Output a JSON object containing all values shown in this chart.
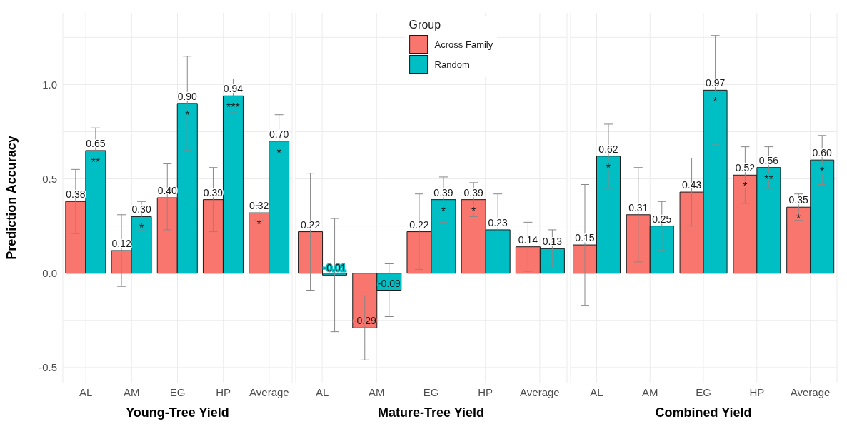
{
  "chart_data": [
    {
      "type": "bar",
      "xlabel": "Young-Tree Yield",
      "ylabel": "Prediction Accuracy",
      "categories": [
        "AL",
        "AM",
        "EG",
        "HP",
        "Average"
      ],
      "ylim": [
        -0.58,
        1.38
      ],
      "yticks": [
        {
          "value": -0.5,
          "label": "-0.5"
        },
        {
          "value": -0.25,
          "label": null
        },
        {
          "value": 0,
          "label": "0.0"
        },
        {
          "value": 0.25,
          "label": null
        },
        {
          "value": 0.5,
          "label": "0.5"
        },
        {
          "value": 0.75,
          "label": null
        },
        {
          "value": 1,
          "label": "1.0"
        },
        {
          "value": 1.25,
          "label": null
        }
      ],
      "grid": true,
      "series": [
        {
          "color": "#f8766d",
          "values": [
            0.38,
            0.12,
            0.4,
            0.39,
            0.32
          ],
          "value_labels": [
            "0.38",
            "0.12",
            "0.40",
            "0.39",
            "0.32"
          ],
          "errors": [
            [
              0.21,
              0.55
            ],
            [
              -0.07,
              0.31
            ],
            [
              0.23,
              0.58
            ],
            [
              0.22,
              0.56
            ],
            [
              0.28,
              0.36
            ]
          ]
        },
        {
          "color": "#00bfc4",
          "values": [
            0.65,
            0.3,
            0.9,
            0.94,
            0.7
          ],
          "value_labels": [
            "0.65",
            "0.30",
            "0.90",
            "0.94",
            "0.70"
          ],
          "errors": [
            [
              0.53,
              0.77
            ],
            [
              0.23,
              0.38
            ],
            [
              0.65,
              1.15
            ],
            [
              0.85,
              1.03
            ],
            [
              0.57,
              0.84
            ]
          ]
        }
      ],
      "annotations": [
        {
          "text": "**",
          "x": "AL",
          "y": 0.65
        },
        {
          "text": "*",
          "x": "AM",
          "y": 0.3
        },
        {
          "text": "*",
          "x": "EG",
          "y": 0.9
        },
        {
          "text": "***",
          "x": "HP",
          "y": 0.94
        },
        {
          "text": "*",
          "x": "Average",
          "y": 0.32
        },
        {
          "text": "*",
          "x": "Average",
          "y": 0.7
        }
      ]
    },
    {
      "type": "bar",
      "xlabel": "Mature-Tree Yield",
      "categories": [
        "AL",
        "AM",
        "EG",
        "HP",
        "Average"
      ],
      "ylim": [
        -0.58,
        1.38
      ],
      "yticks": [
        {
          "value": -0.5,
          "label": null
        },
        {
          "value": -0.25,
          "label": null
        },
        {
          "value": 0,
          "label": null
        },
        {
          "value": 0.25,
          "label": null
        },
        {
          "value": 0.5,
          "label": null
        },
        {
          "value": 0.75,
          "label": null
        },
        {
          "value": 1,
          "label": null
        },
        {
          "value": 1.25,
          "label": null
        }
      ],
      "grid": true,
      "tick_labels": "x",
      "legend": "top",
      "legend_title": "Group",
      "series": [
        {
          "name": "Across Family",
          "color": "#f8766d",
          "values": [
            0.22,
            -0.29,
            0.22,
            0.39,
            0.14
          ],
          "value_labels": [
            "0.22",
            "-0.29",
            "0.22",
            "0.39",
            "0.14"
          ],
          "errors": [
            [
              -0.09,
              0.53
            ],
            [
              -0.46,
              -0.12
            ],
            [
              0.02,
              0.42
            ],
            [
              0.3,
              0.48
            ],
            [
              0.01,
              0.27
            ]
          ]
        },
        {
          "name": "Random",
          "color": "#00bfc4",
          "values": [
            -0.01,
            -0.09,
            0.39,
            0.23,
            0.13
          ],
          "value_labels": [
            "-0.01",
            "-0.09",
            "0.39",
            "0.23",
            "0.13"
          ],
          "errors": [
            [
              -0.31,
              0.29
            ],
            [
              -0.23,
              0.05
            ],
            [
              0.27,
              0.51
            ],
            [
              0.04,
              0.42
            ],
            [
              0.03,
              0.23
            ]
          ]
        }
      ],
      "annotations": [
        {
          "text": "*",
          "x": "EG",
          "y": 0.39
        },
        {
          "text": "*",
          "x": "HP",
          "y": 0.39
        }
      ]
    },
    {
      "type": "bar",
      "xlabel": "Combined Yield",
      "categories": [
        "AL",
        "AM",
        "EG",
        "HP",
        "Average"
      ],
      "ylim": [
        -0.58,
        1.38
      ],
      "yticks": [
        {
          "value": -0.5,
          "label": null
        },
        {
          "value": -0.25,
          "label": null
        },
        {
          "value": 0,
          "label": null
        },
        {
          "value": 0.25,
          "label": null
        },
        {
          "value": 0.5,
          "label": null
        },
        {
          "value": 0.75,
          "label": null
        },
        {
          "value": 1,
          "label": null
        },
        {
          "value": 1.25,
          "label": null
        }
      ],
      "grid": true,
      "tick_labels": "x",
      "series": [
        {
          "color": "#f8766d",
          "values": [
            0.15,
            0.31,
            0.43,
            0.52,
            0.35
          ],
          "value_labels": [
            "0.15",
            "0.31",
            "0.43",
            "0.52",
            "0.35"
          ],
          "errors": [
            [
              -0.17,
              0.47
            ],
            [
              0.06,
              0.56
            ],
            [
              0.25,
              0.61
            ],
            [
              0.37,
              0.67
            ],
            [
              0.28,
              0.42
            ]
          ]
        },
        {
          "color": "#00bfc4",
          "values": [
            0.62,
            0.25,
            0.97,
            0.56,
            0.6
          ],
          "value_labels": [
            "0.62",
            "0.25",
            "0.97",
            "0.56",
            "0.60"
          ],
          "errors": [
            [
              0.45,
              0.79
            ],
            [
              0.12,
              0.38
            ],
            [
              0.68,
              1.26
            ],
            [
              0.45,
              0.67
            ],
            [
              0.47,
              0.73
            ]
          ]
        }
      ],
      "annotations": [
        {
          "text": "*",
          "x": "AL",
          "y": 0.62
        },
        {
          "text": "*",
          "x": "EG",
          "y": 0.97
        },
        {
          "text": "*",
          "x": "HP",
          "y": 0.52
        },
        {
          "text": "**",
          "x": "HP",
          "y": 0.56
        },
        {
          "text": "*",
          "x": "Average",
          "y": 0.35
        },
        {
          "text": "*",
          "x": "Average",
          "y": 0.6
        }
      ]
    }
  ]
}
